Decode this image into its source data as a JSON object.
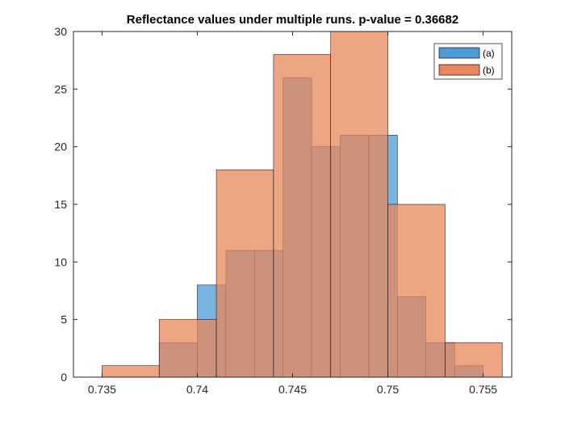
{
  "chart_data": {
    "type": "bar",
    "title": "Reflectance values under multiple runs. p-value = 0.36682",
    "xlabel": "",
    "ylabel": "",
    "xlim": [
      0.7335,
      0.7565
    ],
    "ylim": [
      0,
      30
    ],
    "xticks": [
      0.735,
      0.74,
      0.745,
      0.75,
      0.755
    ],
    "xtick_labels": [
      "0.735",
      "0.74",
      "0.745",
      "0.75",
      "0.755"
    ],
    "yticks": [
      0,
      5,
      10,
      15,
      20,
      25,
      30
    ],
    "ytick_labels": [
      "0",
      "5",
      "10",
      "15",
      "20",
      "25",
      "30"
    ],
    "legend_position": "top-right",
    "series": [
      {
        "name": "(a)",
        "color": "#4C9AD6",
        "bins": [
          {
            "x0": 0.738,
            "x1": 0.74,
            "count": 3
          },
          {
            "x0": 0.74,
            "x1": 0.7415,
            "count": 8
          },
          {
            "x0": 0.7415,
            "x1": 0.743,
            "count": 11
          },
          {
            "x0": 0.743,
            "x1": 0.7445,
            "count": 11
          },
          {
            "x0": 0.7445,
            "x1": 0.746,
            "count": 26
          },
          {
            "x0": 0.746,
            "x1": 0.7475,
            "count": 20
          },
          {
            "x0": 0.7475,
            "x1": 0.749,
            "count": 21
          },
          {
            "x0": 0.749,
            "x1": 0.7505,
            "count": 21
          },
          {
            "x0": 0.7505,
            "x1": 0.752,
            "count": 7
          },
          {
            "x0": 0.752,
            "x1": 0.7535,
            "count": 3
          },
          {
            "x0": 0.7535,
            "x1": 0.755,
            "count": 1
          }
        ]
      },
      {
        "name": "(b)",
        "color": "#E8875A",
        "bins": [
          {
            "x0": 0.735,
            "x1": 0.738,
            "count": 1
          },
          {
            "x0": 0.738,
            "x1": 0.741,
            "count": 5
          },
          {
            "x0": 0.741,
            "x1": 0.744,
            "count": 18
          },
          {
            "x0": 0.744,
            "x1": 0.747,
            "count": 28
          },
          {
            "x0": 0.747,
            "x1": 0.75,
            "count": 30
          },
          {
            "x0": 0.75,
            "x1": 0.753,
            "count": 15
          },
          {
            "x0": 0.753,
            "x1": 0.756,
            "count": 3
          }
        ]
      }
    ],
    "grid": false
  }
}
